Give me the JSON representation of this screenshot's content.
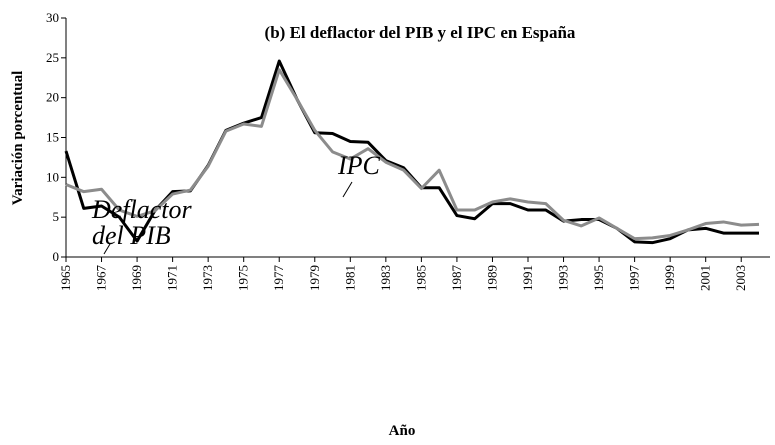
{
  "chart_data": {
    "type": "line",
    "title": "(b) El deflactor del PIB y el IPC en España",
    "x_label": "Año",
    "y_label": "Variación porcentual",
    "x": [
      1965,
      1966,
      1967,
      1968,
      1969,
      1970,
      1971,
      1972,
      1973,
      1974,
      1975,
      1976,
      1977,
      1978,
      1979,
      1980,
      1981,
      1982,
      1983,
      1984,
      1985,
      1986,
      1987,
      1988,
      1989,
      1990,
      1991,
      1992,
      1993,
      1994,
      1995,
      1996,
      1997,
      1998,
      1999,
      2000,
      2001,
      2002,
      2003,
      2004
    ],
    "series": [
      {
        "label_lines": [
          "Deflactor",
          "del PIB"
        ],
        "color": "#000000",
        "values": [
          13.3,
          6.1,
          6.4,
          5.0,
          2.0,
          5.8,
          8.2,
          8.3,
          11.5,
          15.9,
          16.8,
          17.5,
          24.6,
          19.8,
          15.6,
          15.5,
          14.5,
          14.4,
          12.1,
          11.2,
          8.7,
          8.7,
          5.2,
          4.8,
          6.7,
          6.7,
          5.9,
          5.9,
          4.5,
          4.7,
          4.7,
          3.6,
          1.9,
          1.8,
          2.3,
          3.4,
          3.6,
          3.0,
          3.0,
          3.0
        ]
      },
      {
        "label_lines": [
          "IPC"
        ],
        "color": "#8c8c8c",
        "values": [
          9.1,
          8.2,
          8.5,
          5.9,
          5.1,
          5.8,
          7.9,
          8.4,
          11.4,
          15.8,
          16.7,
          16.4,
          23.5,
          19.8,
          15.9,
          13.2,
          12.3,
          13.6,
          11.9,
          10.9,
          8.6,
          10.9,
          5.9,
          5.9,
          6.9,
          7.3,
          6.9,
          6.7,
          4.6,
          3.9,
          4.9,
          3.6,
          2.3,
          2.4,
          2.7,
          3.4,
          4.2,
          4.4,
          4.0,
          4.1
        ]
      }
    ],
    "xlim": [
      1965,
      2004
    ],
    "xticks": [
      1965,
      1967,
      1969,
      1971,
      1973,
      1975,
      1977,
      1979,
      1981,
      1983,
      1985,
      1987,
      1989,
      1991,
      1993,
      1995,
      1997,
      1999,
      2001,
      2003
    ],
    "ylim": [
      0,
      30
    ],
    "yticks": [
      0,
      5,
      10,
      15,
      20,
      25,
      30
    ],
    "grid": false
  }
}
